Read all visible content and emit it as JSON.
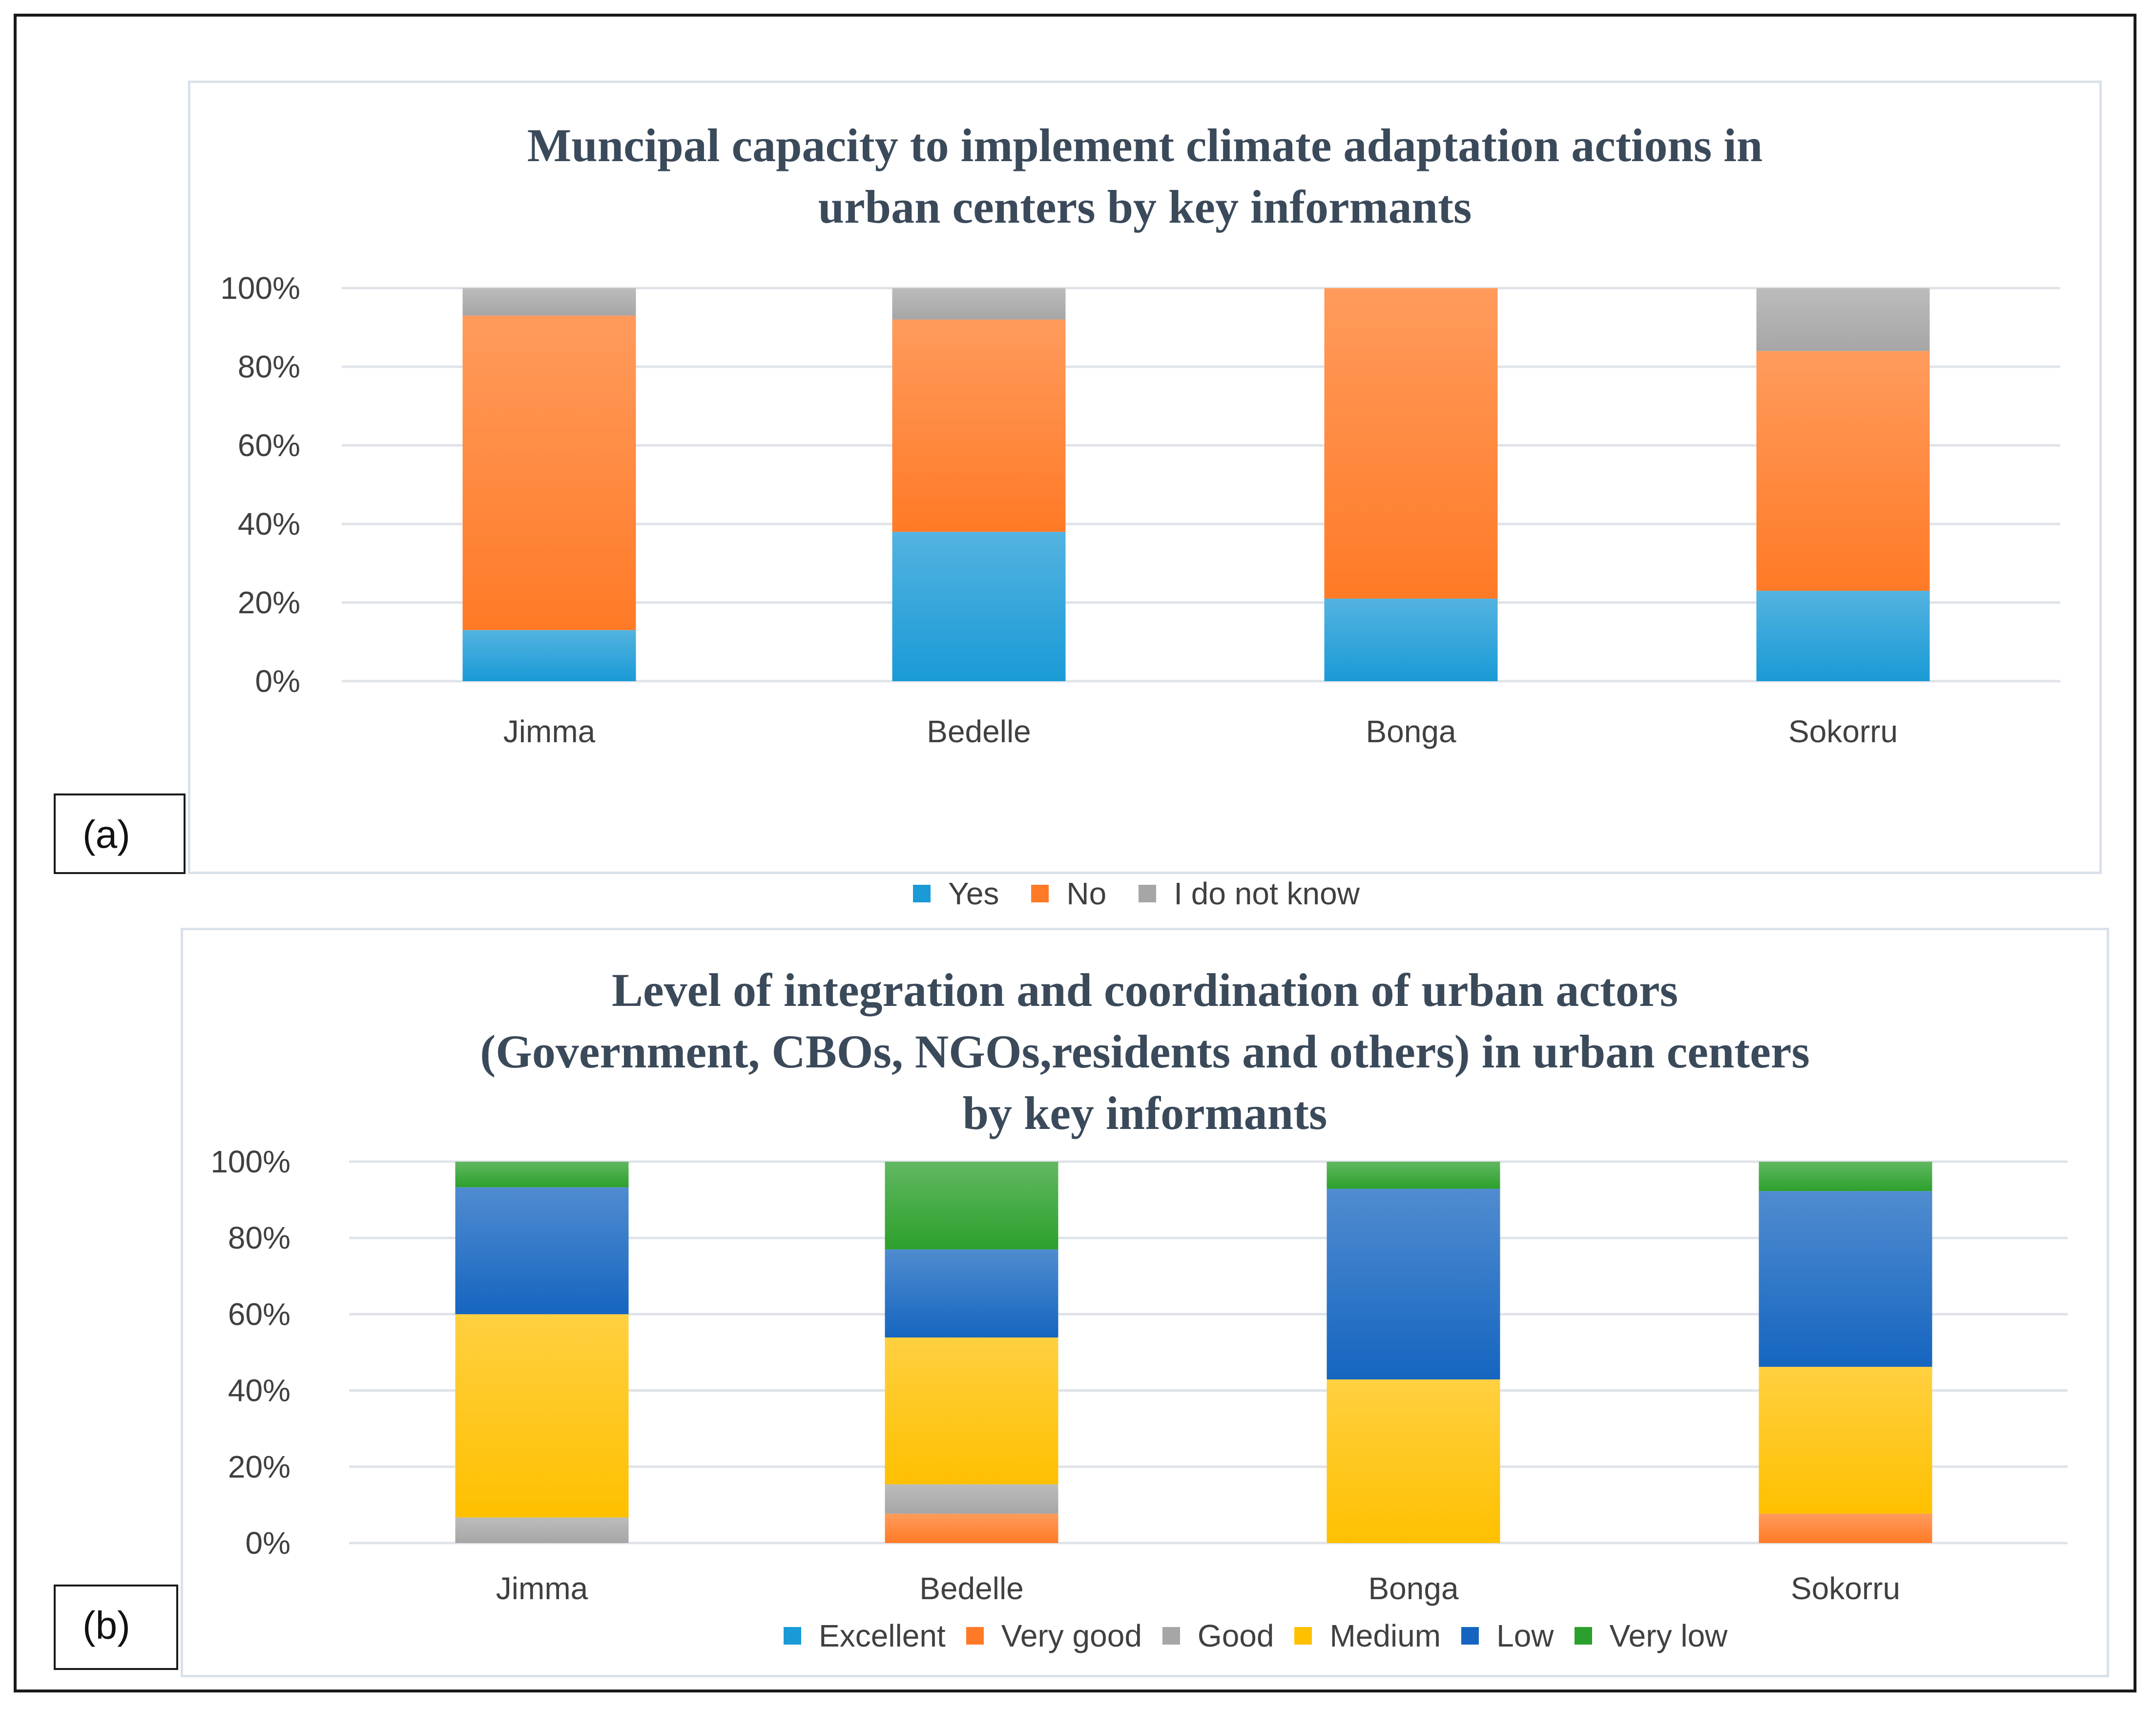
{
  "chart_data": [
    {
      "type": "bar",
      "stacked": true,
      "title": "Muncipal capacity to implement climate adaptation actions in urban centers by key informants",
      "title_lines": [
        "Muncipal capacity to implement climate adaptation actions in",
        "urban centers by key informants"
      ],
      "panel_label": "(a)",
      "categories": [
        "Jimma",
        "Bedelle",
        "Bonga",
        "Sokorru"
      ],
      "y_ticks": [
        "0%",
        "20%",
        "40%",
        "60%",
        "80%",
        "100%"
      ],
      "ylim": [
        0,
        100
      ],
      "legend_position": "bottom",
      "series": [
        {
          "name": "Yes",
          "color": "#1a9ad6",
          "values": [
            13,
            38,
            21,
            23
          ]
        },
        {
          "name": "No",
          "color": "#ff7a26",
          "values": [
            80,
            54,
            79,
            61
          ]
        },
        {
          "name": "I do not know",
          "color": "#a6a6a6",
          "values": [
            7,
            8,
            0,
            16
          ]
        }
      ]
    },
    {
      "type": "bar",
      "stacked": true,
      "title": "Level of integration and coordination of urban actors (Government, CBOs, NGOs,residents and others) in urban centers by key informants",
      "title_lines": [
        "Level of integration and coordination of urban actors",
        "(Government, CBOs, NGOs,residents and others) in urban centers",
        "by key informants"
      ],
      "panel_label": "(b)",
      "categories": [
        "Jimma",
        "Bedelle",
        "Bonga",
        "Sokorru"
      ],
      "y_ticks": [
        "0%",
        "20%",
        "40%",
        "60%",
        "80%",
        "100%"
      ],
      "ylim": [
        0,
        100
      ],
      "legend_position": "bottom",
      "series": [
        {
          "name": "Excellent",
          "color": "#1a9ad6",
          "values": [
            0,
            0,
            0,
            0
          ]
        },
        {
          "name": "Very good",
          "color": "#ff7a26",
          "values": [
            0,
            7.7,
            0,
            7.7
          ]
        },
        {
          "name": "Good",
          "color": "#a6a6a6",
          "values": [
            6.7,
            7.7,
            0,
            0
          ]
        },
        {
          "name": "Medium",
          "color": "#ffc000",
          "values": [
            53.3,
            38.5,
            42.9,
            38.5
          ]
        },
        {
          "name": "Low",
          "color": "#1565c0",
          "values": [
            33.3,
            23.1,
            50,
            46.1
          ]
        },
        {
          "name": "Very low",
          "color": "#2ca02c",
          "values": [
            6.7,
            23,
            7.1,
            7.7
          ]
        }
      ]
    }
  ]
}
